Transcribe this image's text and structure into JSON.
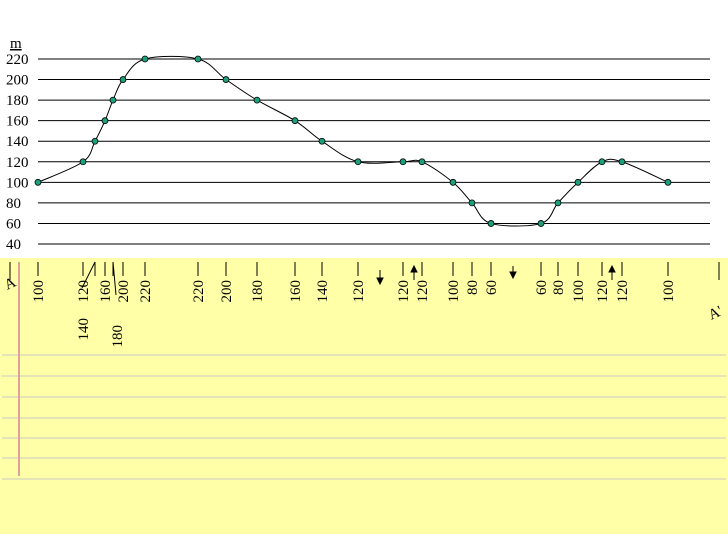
{
  "chart_data": {
    "type": "line",
    "y_label": "m",
    "values": [
      100,
      120,
      140,
      160,
      180,
      200,
      220,
      220,
      200,
      180,
      160,
      140,
      120,
      120,
      120,
      100,
      80,
      60,
      60,
      80,
      100,
      120,
      120,
      100
    ],
    "color": "#1aa07a",
    "ylim": [
      40,
      220
    ],
    "yticks": [
      40,
      60,
      80,
      100,
      120,
      140,
      160,
      180,
      200,
      220
    ],
    "grid": true,
    "start_label": "A",
    "end_label": "A'"
  }
}
